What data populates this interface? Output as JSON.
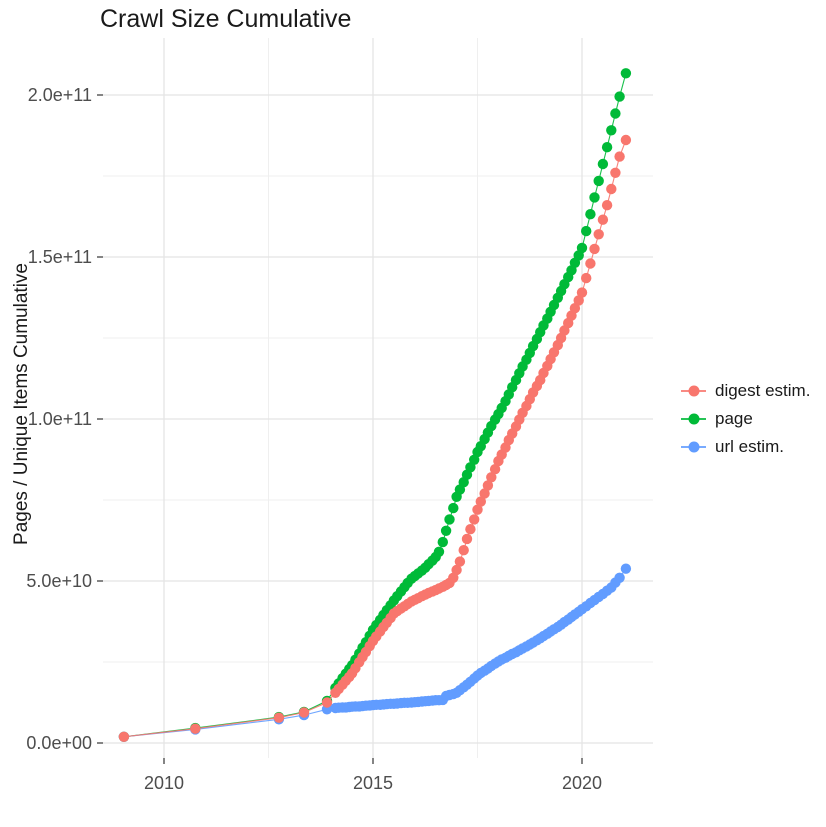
{
  "chart_data": {
    "type": "scatter",
    "title": "Crawl Size Cumulative",
    "xlabel": "",
    "ylabel": "Pages / Unique Items Cumulative",
    "value_unit": "1e9 items (billions)",
    "grid": true,
    "x_axis": {
      "tick_labels": [
        "2010",
        "2015",
        "2020"
      ],
      "tick_values": [
        2010,
        2015,
        2020
      ],
      "minor_values": [
        2012.5,
        2017.5
      ],
      "range": [
        2008.54,
        2021.7
      ]
    },
    "y_axis": {
      "tick_labels": [
        "0.0e+00",
        "5.0e+10",
        "1.0e+11",
        "1.5e+11",
        "2.0e+11"
      ],
      "tick_values_e9": [
        0,
        50,
        100,
        150,
        200
      ],
      "minor_values_e9": [
        25,
        75,
        125,
        175
      ],
      "range_e9": [
        -4.6,
        217.6
      ]
    },
    "legend": {
      "position": "right",
      "entries": [
        "digest estim.",
        "page",
        "url estim."
      ]
    },
    "series": [
      {
        "name": "digest estim.",
        "color": "#F8766D",
        "points_year_value_e9": [
          [
            2009.04,
            1.9
          ],
          [
            2010.75,
            4.4
          ],
          [
            2012.75,
            7.8
          ],
          [
            2013.35,
            9.4
          ],
          [
            2013.9,
            12.5
          ],
          [
            2014.1,
            15.5
          ],
          [
            2014.18,
            16.7
          ],
          [
            2014.27,
            18.0
          ],
          [
            2014.35,
            19.2
          ],
          [
            2014.43,
            20.4
          ],
          [
            2014.5,
            21.5
          ],
          [
            2014.58,
            23.1
          ],
          [
            2014.67,
            24.9
          ],
          [
            2014.75,
            26.5
          ],
          [
            2014.83,
            28.1
          ],
          [
            2014.92,
            29.9
          ],
          [
            2015.0,
            31.5
          ],
          [
            2015.08,
            32.9
          ],
          [
            2015.17,
            34.4
          ],
          [
            2015.25,
            35.8
          ],
          [
            2015.33,
            37.1
          ],
          [
            2015.42,
            38.6
          ],
          [
            2015.5,
            40.0
          ],
          [
            2015.58,
            40.7
          ],
          [
            2015.67,
            41.5
          ],
          [
            2015.75,
            42.2
          ],
          [
            2015.83,
            42.9
          ],
          [
            2015.92,
            43.7
          ],
          [
            2016.0,
            44.2
          ],
          [
            2016.08,
            44.7
          ],
          [
            2016.17,
            45.3
          ],
          [
            2016.25,
            45.8
          ],
          [
            2016.33,
            46.3
          ],
          [
            2016.42,
            46.8
          ],
          [
            2016.5,
            47.2
          ],
          [
            2016.58,
            47.7
          ],
          [
            2016.67,
            48.2
          ],
          [
            2016.75,
            48.8
          ],
          [
            2016.83,
            49.4
          ],
          [
            2016.92,
            51.0
          ],
          [
            2017.0,
            53.4
          ],
          [
            2017.08,
            56.0
          ],
          [
            2017.17,
            59.5
          ],
          [
            2017.25,
            63.0
          ],
          [
            2017.33,
            66.0
          ],
          [
            2017.42,
            69.0
          ],
          [
            2017.5,
            72.0
          ],
          [
            2017.58,
            74.5
          ],
          [
            2017.67,
            77.0
          ],
          [
            2017.75,
            79.5
          ],
          [
            2017.83,
            82.0
          ],
          [
            2017.92,
            84.5
          ],
          [
            2018.0,
            87.0
          ],
          [
            2018.08,
            89.0
          ],
          [
            2018.17,
            91.2
          ],
          [
            2018.25,
            93.5
          ],
          [
            2018.33,
            95.5
          ],
          [
            2018.42,
            97.7
          ],
          [
            2018.5,
            99.8
          ],
          [
            2018.58,
            101.9
          ],
          [
            2018.67,
            104.0
          ],
          [
            2018.75,
            106.1
          ],
          [
            2018.83,
            108.2
          ],
          [
            2018.92,
            110.2
          ],
          [
            2019.0,
            112.0
          ],
          [
            2019.08,
            114.2
          ],
          [
            2019.17,
            116.4
          ],
          [
            2019.25,
            118.5
          ],
          [
            2019.33,
            120.6
          ],
          [
            2019.42,
            122.8
          ],
          [
            2019.5,
            125.0
          ],
          [
            2019.58,
            127.3
          ],
          [
            2019.67,
            129.6
          ],
          [
            2019.75,
            131.9
          ],
          [
            2019.83,
            134.2
          ],
          [
            2019.92,
            136.6
          ],
          [
            2020.0,
            139.0
          ],
          [
            2020.1,
            143.5
          ],
          [
            2020.2,
            148.0
          ],
          [
            2020.3,
            152.5
          ],
          [
            2020.4,
            157.0
          ],
          [
            2020.5,
            161.5
          ],
          [
            2020.6,
            166.0
          ],
          [
            2020.7,
            171.0
          ],
          [
            2020.8,
            176.0
          ],
          [
            2020.9,
            181.0
          ],
          [
            2021.05,
            186.1
          ]
        ]
      },
      {
        "name": "page",
        "color": "#00BA38",
        "points_year_value_e9": [
          [
            2009.04,
            1.9
          ],
          [
            2010.75,
            4.6
          ],
          [
            2012.75,
            8.0
          ],
          [
            2013.35,
            9.6
          ],
          [
            2013.9,
            13.0
          ],
          [
            2014.1,
            17.0
          ],
          [
            2014.18,
            18.4
          ],
          [
            2014.27,
            20.0
          ],
          [
            2014.35,
            21.4
          ],
          [
            2014.43,
            22.8
          ],
          [
            2014.5,
            24.0
          ],
          [
            2014.58,
            25.7
          ],
          [
            2014.67,
            27.6
          ],
          [
            2014.75,
            29.4
          ],
          [
            2014.83,
            31.1
          ],
          [
            2014.92,
            33.1
          ],
          [
            2015.0,
            34.9
          ],
          [
            2015.08,
            36.4
          ],
          [
            2015.17,
            38.0
          ],
          [
            2015.25,
            39.5
          ],
          [
            2015.33,
            41.0
          ],
          [
            2015.42,
            42.5
          ],
          [
            2015.5,
            44.0
          ],
          [
            2015.58,
            45.3
          ],
          [
            2015.67,
            46.8
          ],
          [
            2015.75,
            48.1
          ],
          [
            2015.83,
            49.4
          ],
          [
            2015.92,
            50.7
          ],
          [
            2016.0,
            51.5
          ],
          [
            2016.08,
            52.3
          ],
          [
            2016.17,
            53.2
          ],
          [
            2016.25,
            54.1
          ],
          [
            2016.33,
            55.2
          ],
          [
            2016.42,
            56.3
          ],
          [
            2016.5,
            57.4
          ],
          [
            2016.58,
            59.0
          ],
          [
            2016.67,
            62.0
          ],
          [
            2016.75,
            65.5
          ],
          [
            2016.83,
            69.0
          ],
          [
            2016.92,
            72.5
          ],
          [
            2017.0,
            76.0
          ],
          [
            2017.08,
            78.2
          ],
          [
            2017.17,
            80.5
          ],
          [
            2017.25,
            82.8
          ],
          [
            2017.33,
            85.1
          ],
          [
            2017.42,
            87.4
          ],
          [
            2017.5,
            89.8
          ],
          [
            2017.58,
            91.6
          ],
          [
            2017.67,
            93.8
          ],
          [
            2017.75,
            95.8
          ],
          [
            2017.83,
            97.8
          ],
          [
            2017.92,
            99.8
          ],
          [
            2018.0,
            101.5
          ],
          [
            2018.08,
            103.4
          ],
          [
            2018.17,
            105.5
          ],
          [
            2018.25,
            107.6
          ],
          [
            2018.33,
            109.8
          ],
          [
            2018.42,
            112.0
          ],
          [
            2018.5,
            114.1
          ],
          [
            2018.58,
            116.2
          ],
          [
            2018.67,
            118.3
          ],
          [
            2018.75,
            120.4
          ],
          [
            2018.83,
            122.5
          ],
          [
            2018.92,
            124.7
          ],
          [
            2019.0,
            126.8
          ],
          [
            2019.08,
            128.9
          ],
          [
            2019.17,
            131.0
          ],
          [
            2019.25,
            133.1
          ],
          [
            2019.33,
            135.2
          ],
          [
            2019.42,
            137.4
          ],
          [
            2019.5,
            139.5
          ],
          [
            2019.58,
            141.6
          ],
          [
            2019.67,
            143.8
          ],
          [
            2019.75,
            145.9
          ],
          [
            2019.83,
            148.2
          ],
          [
            2019.92,
            150.5
          ],
          [
            2020.0,
            152.8
          ],
          [
            2020.1,
            158.0
          ],
          [
            2020.2,
            163.2
          ],
          [
            2020.3,
            168.4
          ],
          [
            2020.4,
            173.5
          ],
          [
            2020.5,
            178.7
          ],
          [
            2020.6,
            183.9
          ],
          [
            2020.7,
            189.1
          ],
          [
            2020.8,
            194.3
          ],
          [
            2020.9,
            199.5
          ],
          [
            2021.05,
            206.7
          ]
        ]
      },
      {
        "name": "url estim.",
        "color": "#619CFF",
        "points_year_value_e9": [
          [
            2009.04,
            1.9
          ],
          [
            2010.75,
            4.2
          ],
          [
            2012.75,
            7.3
          ],
          [
            2013.35,
            8.6
          ],
          [
            2013.9,
            10.4
          ],
          [
            2014.1,
            10.8
          ],
          [
            2014.18,
            10.9
          ],
          [
            2014.27,
            11.0
          ],
          [
            2014.35,
            11.0
          ],
          [
            2014.43,
            11.1
          ],
          [
            2014.5,
            11.2
          ],
          [
            2014.58,
            11.3
          ],
          [
            2014.67,
            11.3
          ],
          [
            2014.75,
            11.4
          ],
          [
            2014.83,
            11.5
          ],
          [
            2014.92,
            11.6
          ],
          [
            2015.0,
            11.7
          ],
          [
            2015.08,
            11.8
          ],
          [
            2015.17,
            11.8
          ],
          [
            2015.25,
            11.9
          ],
          [
            2015.33,
            12.0
          ],
          [
            2015.42,
            12.1
          ],
          [
            2015.5,
            12.1
          ],
          [
            2015.58,
            12.2
          ],
          [
            2015.67,
            12.3
          ],
          [
            2015.75,
            12.4
          ],
          [
            2015.83,
            12.4
          ],
          [
            2015.92,
            12.5
          ],
          [
            2016.0,
            12.6
          ],
          [
            2016.08,
            12.7
          ],
          [
            2016.17,
            12.8
          ],
          [
            2016.25,
            12.9
          ],
          [
            2016.33,
            13.0
          ],
          [
            2016.42,
            13.1
          ],
          [
            2016.5,
            13.2
          ],
          [
            2016.58,
            13.2
          ],
          [
            2016.67,
            13.3
          ],
          [
            2016.75,
            14.5
          ],
          [
            2016.83,
            14.8
          ],
          [
            2016.92,
            15.1
          ],
          [
            2017.0,
            15.5
          ],
          [
            2017.08,
            16.3
          ],
          [
            2017.17,
            17.2
          ],
          [
            2017.25,
            18.0
          ],
          [
            2017.33,
            18.9
          ],
          [
            2017.42,
            19.9
          ],
          [
            2017.5,
            20.8
          ],
          [
            2017.58,
            21.6
          ],
          [
            2017.67,
            22.3
          ],
          [
            2017.75,
            23.0
          ],
          [
            2017.83,
            23.8
          ],
          [
            2017.92,
            24.5
          ],
          [
            2018.0,
            25.2
          ],
          [
            2018.08,
            25.8
          ],
          [
            2018.17,
            26.3
          ],
          [
            2018.25,
            26.9
          ],
          [
            2018.33,
            27.5
          ],
          [
            2018.42,
            28.0
          ],
          [
            2018.5,
            28.6
          ],
          [
            2018.58,
            29.2
          ],
          [
            2018.67,
            29.8
          ],
          [
            2018.75,
            30.4
          ],
          [
            2018.83,
            31.0
          ],
          [
            2018.92,
            31.7
          ],
          [
            2019.0,
            32.3
          ],
          [
            2019.08,
            33.0
          ],
          [
            2019.17,
            33.7
          ],
          [
            2019.25,
            34.4
          ],
          [
            2019.33,
            35.1
          ],
          [
            2019.42,
            35.8
          ],
          [
            2019.5,
            36.5
          ],
          [
            2019.58,
            37.3
          ],
          [
            2019.67,
            38.1
          ],
          [
            2019.75,
            38.9
          ],
          [
            2019.83,
            39.7
          ],
          [
            2019.92,
            40.5
          ],
          [
            2020.0,
            41.3
          ],
          [
            2020.1,
            42.2
          ],
          [
            2020.2,
            43.2
          ],
          [
            2020.3,
            44.1
          ],
          [
            2020.4,
            45.1
          ],
          [
            2020.5,
            46.0
          ],
          [
            2020.6,
            47.0
          ],
          [
            2020.7,
            48.0
          ],
          [
            2020.8,
            49.5
          ],
          [
            2020.9,
            51.0
          ],
          [
            2021.05,
            53.8
          ]
        ]
      }
    ],
    "style": {
      "major_grid_color": "#e4e4e4",
      "minor_grid_color": "#efefef",
      "tick_color": "#333333",
      "tick_label_color": "#4d4d4d",
      "point_radius_px": 5.2
    }
  }
}
